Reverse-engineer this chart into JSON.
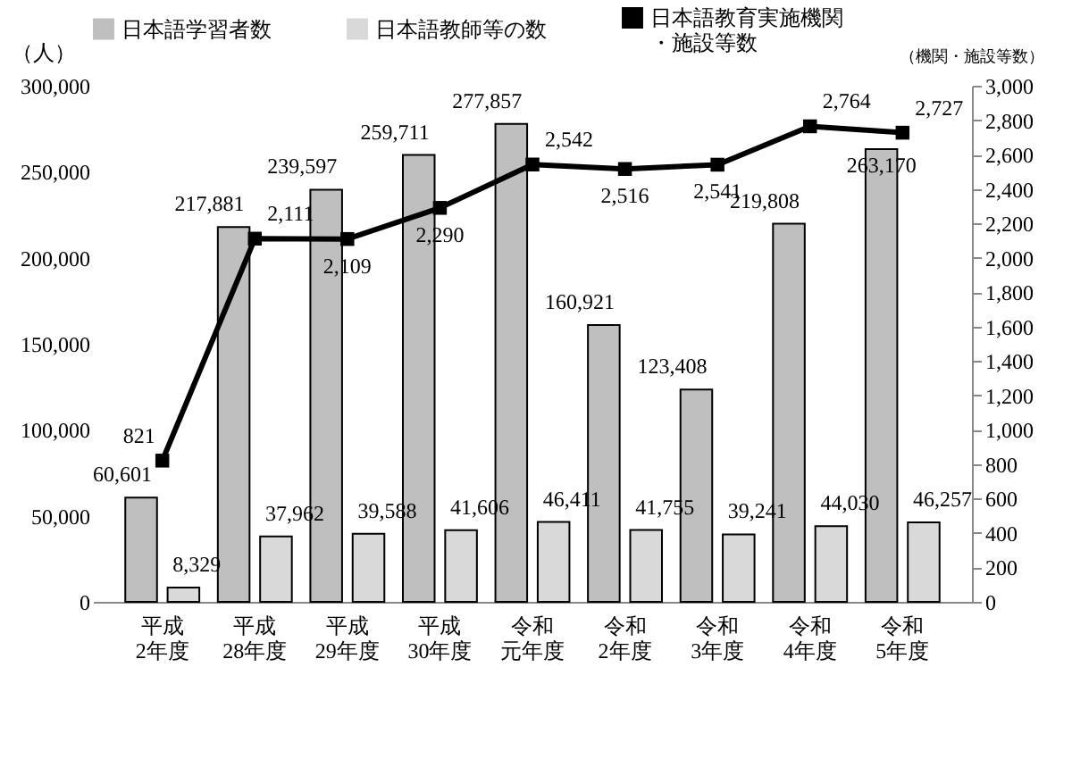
{
  "chart_data": {
    "type": "bar",
    "ylabel": "（人）",
    "y2label": "（機関・施設等数）",
    "categories": [
      "平成2年度",
      "平成28年度",
      "平成29年度",
      "平成30年度",
      "令和元年度",
      "令和2年度",
      "令和3年度",
      "令和4年度",
      "令和5年度"
    ],
    "series": [
      {
        "name": "日本語学習者数",
        "color": "#bfbfbf",
        "values": [
          60601,
          217881,
          239597,
          259711,
          277857,
          160921,
          123408,
          219808,
          263170
        ],
        "value_labels": [
          "60,601",
          "217,881",
          "239,597",
          "259,711",
          "277,857",
          "160,921",
          "123,408",
          "219,808",
          "263,170"
        ]
      },
      {
        "name": "日本語教師等の数",
        "color": "#d9d9d9",
        "values": [
          8329,
          37962,
          39588,
          41606,
          46411,
          41755,
          39241,
          44030,
          46257
        ],
        "value_labels": [
          "8,329",
          "37,962",
          "39,588",
          "41,606",
          "46,411",
          "41,755",
          "39,241",
          "44,030",
          "46,257"
        ]
      },
      {
        "name": "日本語教育実施機関・施設等数",
        "type": "line",
        "axis": "y2",
        "color": "#000000",
        "values": [
          821,
          2111,
          2109,
          2290,
          2542,
          2516,
          2541,
          2764,
          2727
        ],
        "value_labels": [
          "821",
          "2,111",
          "2,109",
          "2,290",
          "2,542",
          "2,516",
          "2,541",
          "2,764",
          "2,727"
        ]
      }
    ],
    "ylim": [
      0,
      300000
    ],
    "yticks": [
      0,
      {
        "value": 50000,
        "label": "50,000"
      },
      {
        "value": 100000,
        "label": "100,000"
      },
      {
        "value": 150000,
        "label": "150,000"
      },
      {
        "value": 200000,
        "label": "200,000"
      },
      {
        "value": 250000,
        "label": "250,000"
      },
      {
        "value": 300000,
        "label": "300,000"
      }
    ],
    "y2lim": [
      0,
      3000
    ],
    "y2ticks": [
      0,
      200,
      400,
      600,
      800,
      {
        "value": 1000,
        "label": "1,000"
      },
      {
        "value": 1200,
        "label": "1,200"
      },
      {
        "value": 1400,
        "label": "1,400"
      },
      {
        "value": 1600,
        "label": "1,600"
      },
      {
        "value": 1800,
        "label": "1,800"
      },
      {
        "value": 2000,
        "label": "2,000"
      },
      {
        "value": 2200,
        "label": "2,200"
      },
      {
        "value": 2400,
        "label": "2,400"
      },
      {
        "value": 2600,
        "label": "2,600"
      },
      {
        "value": 2800,
        "label": "2,800"
      },
      {
        "value": 3000,
        "label": "3,000"
      }
    ],
    "legend": "top",
    "marker": "square",
    "line_style": "solid"
  }
}
